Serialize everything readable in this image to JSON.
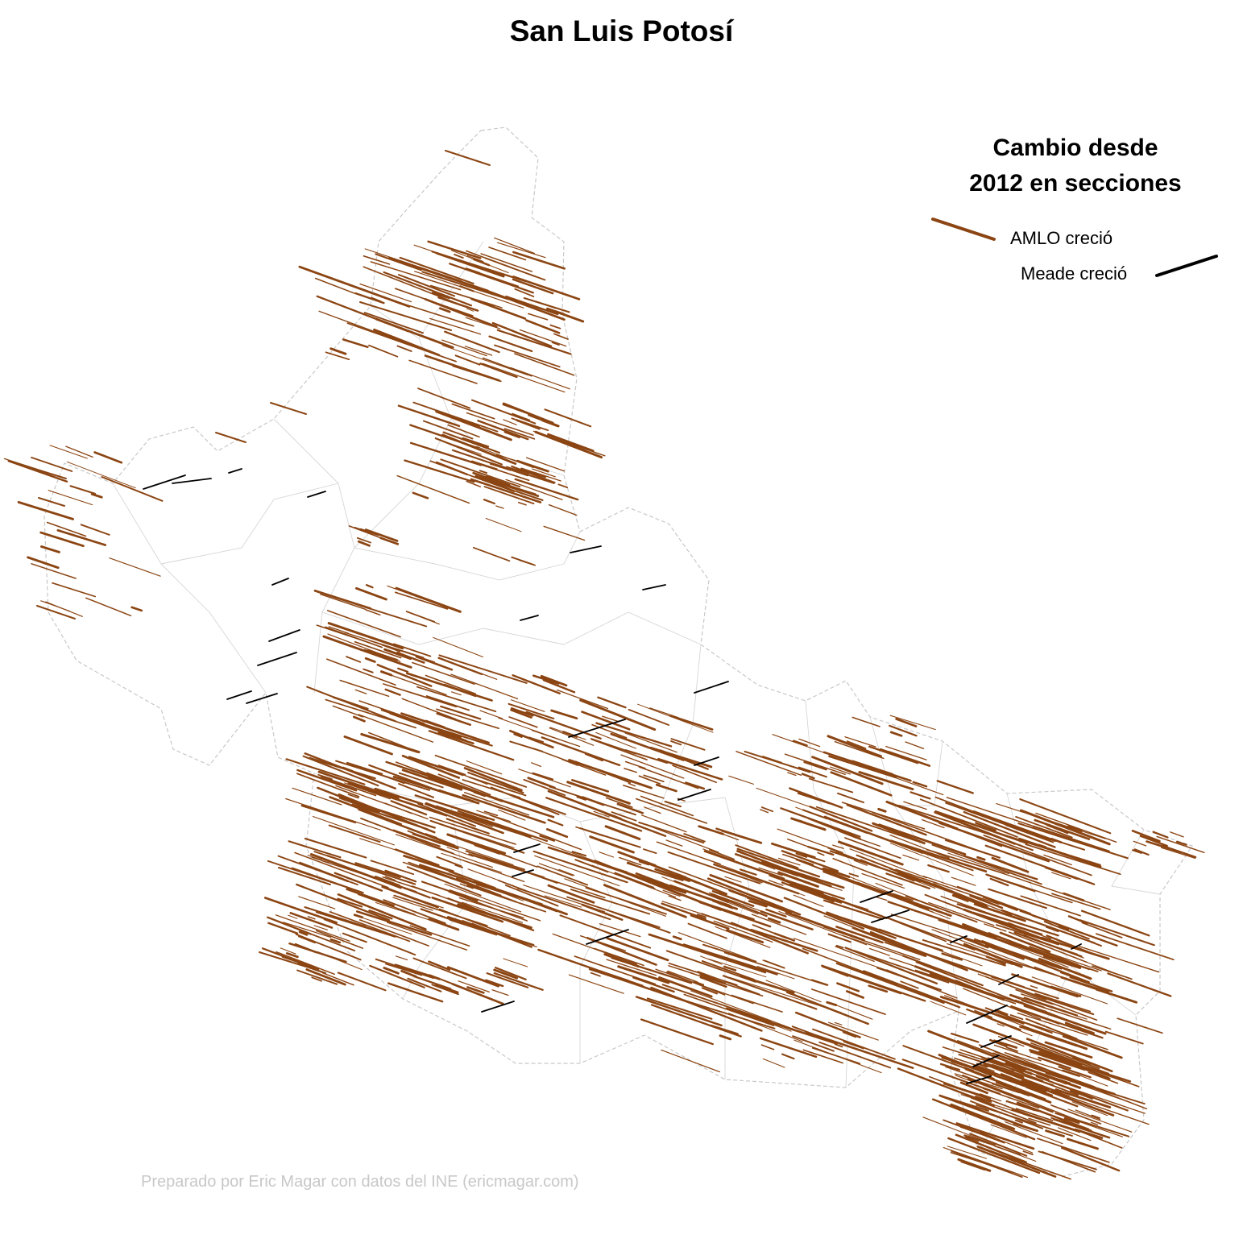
{
  "title": "San Luis Potosí",
  "legend": {
    "title_line1": "Cambio desde",
    "title_line2": "2012 en secciones",
    "items": [
      {
        "label": "AMLO creció",
        "color": "#8B4513"
      },
      {
        "label": "Meade creció",
        "color": "#000000"
      }
    ]
  },
  "credit": "Preparado por Eric Magar con datos del INE (ericmagar.com)",
  "colors": {
    "amlo": "#8B4513",
    "meade": "#000000",
    "boundary": "#c8c8c8",
    "background": "#ffffff"
  }
}
